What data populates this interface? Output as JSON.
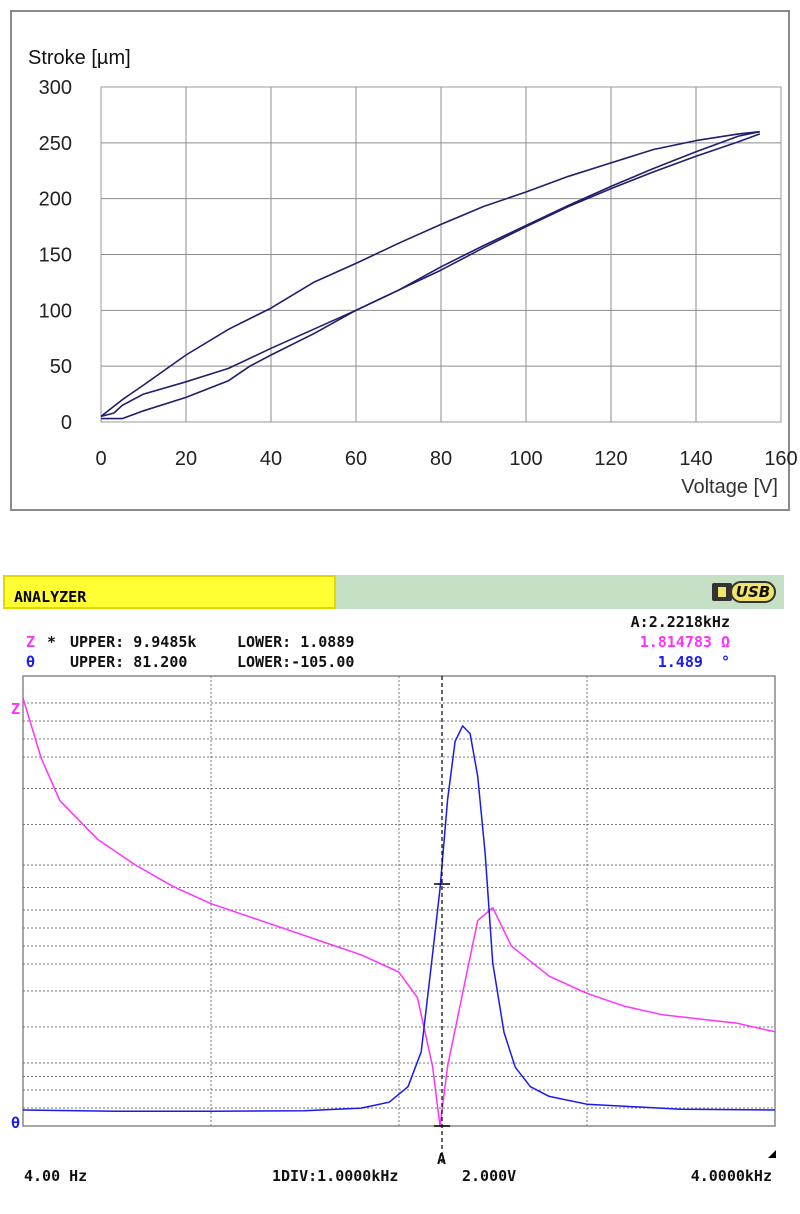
{
  "stroke_chart": {
    "ylabel": "Stroke [µm]",
    "xlabel": "Voltage [V]",
    "x_ticks": [
      "0",
      "20",
      "40",
      "60",
      "80",
      "100",
      "120",
      "140",
      "160"
    ],
    "y_ticks": [
      "0",
      "50",
      "100",
      "150",
      "200",
      "250",
      "300"
    ],
    "line_color": "#1f1f6b"
  },
  "analyzer": {
    "title": "ANALYZER",
    "usb_label": "USB",
    "marker_freq": "A:2.2218kHz",
    "z_row": {
      "symbol": "Z",
      "star": "*",
      "upper": "UPPER: 9.9485k",
      "lower": "LOWER: 1.0889",
      "value": "1.814783 Ω"
    },
    "theta_row": {
      "symbol": "θ",
      "upper": "UPPER: 81.200",
      "lower": "LOWER:-105.00",
      "value": "1.489  °"
    },
    "z_axis_label": "Z",
    "theta_axis_label": "θ",
    "cursor_label": "A",
    "x_start": "4.00 Hz",
    "div_label": "1DIV:1.0000kHz",
    "volt_label": "2.000V",
    "x_end": "4.0000kHz",
    "z_color": "#ff33ff",
    "theta_color": "#1a1aee",
    "header_color": "#ffff33"
  },
  "chart_data": [
    {
      "type": "line",
      "title": "",
      "xlabel": "Voltage [V]",
      "ylabel": "Stroke [µm]",
      "xlim": [
        0,
        160
      ],
      "ylim": [
        0,
        300
      ],
      "grid": true,
      "series": [
        {
          "x": [
            0,
            5,
            10,
            20,
            30,
            40,
            50,
            60,
            70,
            80,
            90,
            100,
            110,
            120,
            130,
            140,
            150,
            155
          ],
          "values": [
            5,
            20,
            33,
            60,
            83,
            102,
            125,
            142,
            160,
            177,
            193,
            206,
            220,
            232,
            244,
            252,
            258,
            260
          ]
        },
        {
          "x": [
            155,
            150,
            140,
            130,
            120,
            110,
            100,
            90,
            80,
            70,
            60,
            50,
            40,
            30,
            20,
            10,
            5,
            3,
            0
          ],
          "values": [
            260,
            256,
            242,
            227,
            211,
            194,
            176,
            158,
            139,
            118,
            100,
            83,
            66,
            48,
            36,
            25,
            15,
            8,
            5
          ]
        },
        {
          "x": [
            0,
            5,
            10,
            20,
            30,
            35,
            40,
            50,
            60,
            70,
            80,
            90,
            100,
            110,
            120,
            130,
            140,
            150,
            155
          ],
          "values": [
            3,
            3,
            10,
            22,
            37,
            50,
            60,
            79,
            100,
            118,
            136,
            156,
            175,
            193,
            209,
            224,
            238,
            251,
            258
          ]
        }
      ]
    },
    {
      "type": "line",
      "title": "",
      "xlabel": "",
      "xlim": [
        0.004,
        4.0
      ],
      "x_unit": "kHz",
      "cursor_x": 2.2218,
      "series": [
        {
          "name": "Z",
          "color": "#ff33ff",
          "x": [
            0.004,
            0.1,
            0.2,
            0.4,
            0.6,
            0.8,
            1.0,
            1.2,
            1.4,
            1.6,
            1.8,
            2.0,
            2.1,
            2.18,
            2.22,
            2.26,
            2.34,
            2.42,
            2.5,
            2.6,
            2.8,
            3.0,
            3.2,
            3.4,
            3.6,
            3.8,
            4.0
          ],
          "values": [
            1.0,
            0.86,
            0.76,
            0.67,
            0.61,
            0.56,
            0.52,
            0.49,
            0.46,
            0.43,
            0.4,
            0.36,
            0.3,
            0.14,
            0.0,
            0.14,
            0.31,
            0.48,
            0.51,
            0.42,
            0.35,
            0.31,
            0.28,
            0.26,
            0.25,
            0.24,
            0.22
          ]
        },
        {
          "name": "θ",
          "color": "#1a1aee",
          "x": [
            0.004,
            0.5,
            1.0,
            1.5,
            1.8,
            1.95,
            2.05,
            2.12,
            2.18,
            2.22,
            2.26,
            2.3,
            2.34,
            2.38,
            2.42,
            2.46,
            2.5,
            2.56,
            2.62,
            2.7,
            2.8,
            3.0,
            3.5,
            4.0
          ],
          "values": [
            0.0,
            -0.003,
            -0.003,
            -0.002,
            0.005,
            0.02,
            0.06,
            0.15,
            0.4,
            0.57,
            0.8,
            0.95,
            0.99,
            0.97,
            0.86,
            0.66,
            0.38,
            0.2,
            0.11,
            0.06,
            0.035,
            0.015,
            0.002,
            0.0
          ]
        }
      ]
    }
  ]
}
